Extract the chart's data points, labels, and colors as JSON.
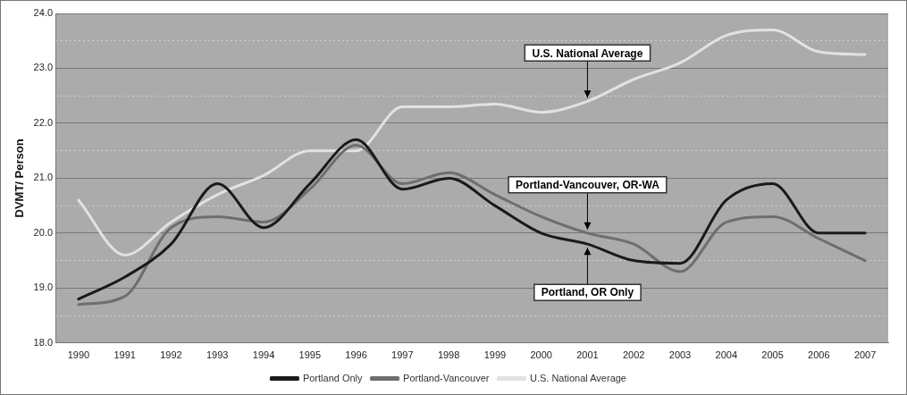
{
  "chart_data": {
    "type": "line",
    "ylabel": "DVMT/ Person",
    "categories": [
      "1990",
      "1991",
      "1992",
      "1993",
      "1994",
      "1995",
      "1996",
      "1997",
      "1998",
      "1999",
      "2000",
      "2001",
      "2002",
      "2003",
      "2004",
      "2005",
      "2006",
      "2007"
    ],
    "series": [
      {
        "name": "Portland Only",
        "color": "#1a1a1a",
        "values": [
          18.8,
          19.2,
          19.8,
          20.9,
          20.1,
          20.9,
          21.7,
          20.8,
          21.0,
          20.5,
          20.0,
          19.8,
          19.5,
          19.45,
          20.6,
          20.9,
          20.0,
          20.0
        ]
      },
      {
        "name": "Portland-Vancouver",
        "color": "#6e6e6e",
        "values": [
          18.7,
          18.85,
          20.1,
          20.3,
          20.2,
          20.8,
          21.6,
          20.9,
          21.1,
          20.7,
          20.3,
          20.0,
          19.8,
          19.3,
          20.2,
          20.3,
          19.9,
          19.5
        ]
      },
      {
        "name": "U.S. National Average",
        "color": "#e2e2e2",
        "values": [
          20.6,
          19.6,
          20.2,
          20.7,
          21.05,
          21.5,
          21.5,
          22.3,
          22.3,
          22.35,
          22.2,
          22.4,
          22.8,
          23.1,
          23.6,
          23.7,
          23.3,
          23.25
        ]
      }
    ],
    "ylim": [
      18,
      24
    ],
    "yticks": [
      {
        "value": 18,
        "label": "18.0"
      },
      {
        "value": 18.5,
        "label": null
      },
      {
        "value": 19,
        "label": "19.0"
      },
      {
        "value": 19.5,
        "label": null
      },
      {
        "value": 20,
        "label": "20.0"
      },
      {
        "value": 20.5,
        "label": null
      },
      {
        "value": 21,
        "label": "21.0"
      },
      {
        "value": 21.5,
        "label": null
      },
      {
        "value": 22,
        "label": "22.0"
      },
      {
        "value": 22.5,
        "label": null
      },
      {
        "value": 23,
        "label": "23.0"
      },
      {
        "value": 23.5,
        "label": null
      },
      {
        "value": 24,
        "label": "24.0"
      }
    ],
    "grid": "y",
    "legend": "bottom",
    "marker": "none",
    "line_style": "solid",
    "annotations": [
      {
        "text": "U.S. National Average",
        "x": "2001",
        "y": 22.4
      },
      {
        "text": "Portland-Vancouver, OR-WA",
        "x": "2001",
        "y": 20.0
      },
      {
        "text": "Portland, OR Only",
        "x": "2001",
        "y": 19.8
      }
    ]
  }
}
